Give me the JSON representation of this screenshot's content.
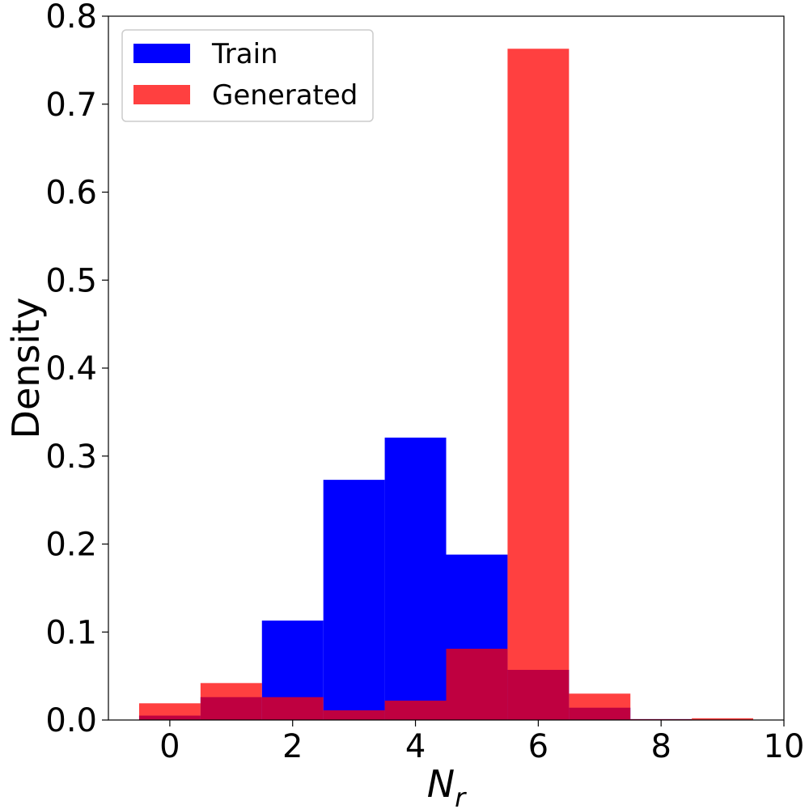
{
  "chart_data": {
    "type": "bar",
    "subtype": "histogram",
    "xlabel": "N",
    "xlabel_subscript": "r",
    "ylabel": "Density",
    "xlim": [
      -1,
      10
    ],
    "ylim": [
      0,
      0.8
    ],
    "xticks": [
      0,
      2,
      4,
      6,
      8,
      10
    ],
    "yticks": [
      0.0,
      0.1,
      0.2,
      0.3,
      0.4,
      0.5,
      0.6,
      0.7,
      0.8
    ],
    "ytick_labels": [
      "0.0",
      "0.1",
      "0.2",
      "0.3",
      "0.4",
      "0.5",
      "0.6",
      "0.7",
      "0.8"
    ],
    "bin_edges": [
      -0.5,
      0.5,
      1.5,
      2.5,
      3.5,
      4.5,
      5.5,
      6.5,
      7.5,
      8.5,
      9.5
    ],
    "grid": false,
    "legend_position": "top-left",
    "series": [
      {
        "name": "Train",
        "color": "#0000ff",
        "opacity": 1,
        "values": [
          0.005,
          0.026,
          0.113,
          0.273,
          0.321,
          0.188,
          0.057,
          0.014,
          0.001,
          0.0
        ]
      },
      {
        "name": "Generated",
        "color": "#ff0000",
        "opacity": 0.75,
        "values": [
          0.019,
          0.042,
          0.026,
          0.011,
          0.022,
          0.081,
          0.763,
          0.03,
          0.001,
          0.002
        ]
      }
    ]
  }
}
